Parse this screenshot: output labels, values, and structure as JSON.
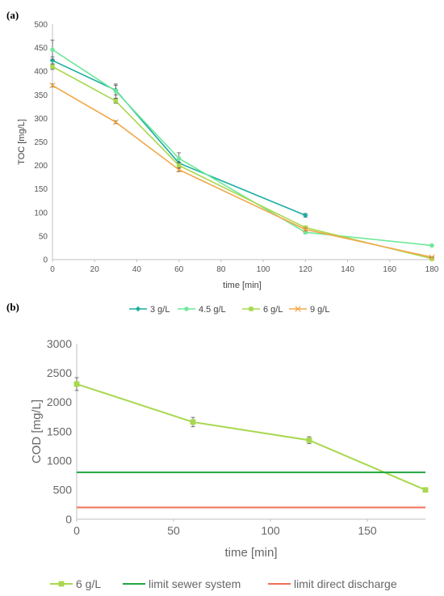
{
  "chart_data": [
    {
      "panel_label": "(a)",
      "type": "line",
      "xlabel": "time [min]",
      "ylabel": "TOC [mg/L]",
      "xlim": [
        0,
        180
      ],
      "ylim": [
        0,
        500
      ],
      "xticks": [
        0,
        20,
        40,
        60,
        80,
        100,
        120,
        140,
        160,
        180
      ],
      "yticks": [
        0,
        50,
        100,
        150,
        200,
        250,
        300,
        350,
        400,
        450,
        500
      ],
      "grid": false,
      "legend_position": "bottom",
      "series": [
        {
          "name": "3 g/L",
          "color": "#1aaea0",
          "marker": "diamond",
          "x": [
            0,
            30,
            60,
            120
          ],
          "y": [
            423,
            360,
            205,
            94
          ],
          "err": [
            8,
            10,
            8,
            4
          ]
        },
        {
          "name": "4.5 g/L",
          "color": "#6ee89a",
          "marker": "circle",
          "x": [
            0,
            30,
            60,
            120,
            180
          ],
          "y": [
            446,
            358,
            215,
            58,
            30
          ],
          "err": [
            20,
            15,
            12,
            3,
            2
          ]
        },
        {
          "name": "6 g/L",
          "color": "#a8d84e",
          "marker": "square",
          "x": [
            0,
            30,
            60,
            120,
            180
          ],
          "y": [
            410,
            337,
            200,
            68,
            2
          ],
          "err": [
            6,
            5,
            6,
            3,
            1
          ]
        },
        {
          "name": "9 g/L",
          "color": "#f0a848",
          "marker": "x",
          "x": [
            0,
            30,
            60,
            120,
            180
          ],
          "y": [
            370,
            292,
            191,
            64,
            5
          ],
          "err": [
            3,
            3,
            4,
            3,
            1
          ]
        }
      ]
    },
    {
      "panel_label": "(b)",
      "type": "line",
      "xlabel": "time [min]",
      "ylabel": "COD [mg/L]",
      "xlim": [
        0,
        180
      ],
      "ylim": [
        0,
        3000
      ],
      "xticks": [
        0,
        50,
        100,
        150
      ],
      "yticks": [
        0,
        500,
        1000,
        1500,
        2000,
        2500,
        3000
      ],
      "grid": false,
      "legend_position": "bottom",
      "series": [
        {
          "name": "6 g/L",
          "color": "#a8d84e",
          "marker": "square",
          "x": [
            0,
            60,
            120,
            180
          ],
          "y": [
            2310,
            1660,
            1350,
            500
          ],
          "err": [
            110,
            80,
            60,
            20
          ]
        },
        {
          "name": "limit sewer system",
          "color": "#22a540",
          "marker": "none",
          "x": [
            0,
            180
          ],
          "y": [
            800,
            800
          ]
        },
        {
          "name": "limit direct discharge",
          "color": "#f07058",
          "marker": "none",
          "x": [
            0,
            180
          ],
          "y": [
            200,
            200
          ]
        }
      ]
    }
  ]
}
